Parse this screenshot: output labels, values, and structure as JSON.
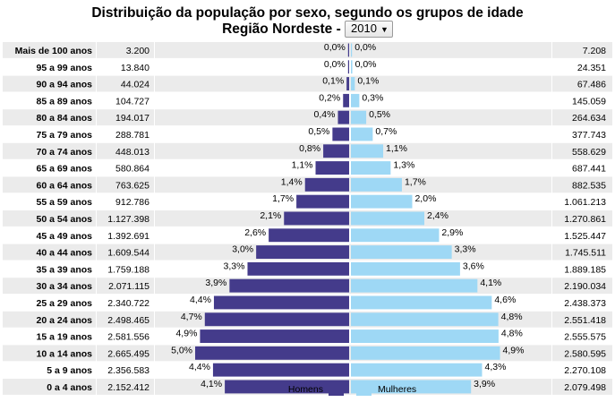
{
  "header": {
    "title": "Distribuição da população por sexo, segundo os grupos de idade",
    "region_prefix": "Região Nordeste -",
    "year_selected": "2010"
  },
  "legend": {
    "men": "Homens",
    "women": "Mulheres"
  },
  "colors": {
    "men": "#443B8B",
    "women": "#9ED8F5",
    "row_even": "#EBEBEB",
    "row_odd": "#FFFFFF"
  },
  "chart_data": {
    "type": "bar",
    "orientation": "horizontal-pyramid",
    "categories": [
      "Mais de 100 anos",
      "95 a 99 anos",
      "90 a 94 anos",
      "85 a 89 anos",
      "80 a 84 anos",
      "75 a 79 anos",
      "70 a 74 anos",
      "65 a 69 anos",
      "60 a 64 anos",
      "55 a 59 anos",
      "50 a 54 anos",
      "45 a 49 anos",
      "40 a 44 anos",
      "35 a 39 anos",
      "30 a 34 anos",
      "25 a 29 anos",
      "20 a 24 anos",
      "15 a 19 anos",
      "10 a 14 anos",
      "5 a 9 anos",
      "0 a 4 anos"
    ],
    "series": [
      {
        "name": "Homens",
        "values": [
          3200,
          13840,
          44024,
          104727,
          194017,
          288781,
          448013,
          580864,
          763625,
          912786,
          1127398,
          1392691,
          1609544,
          1759188,
          2071115,
          2340722,
          2498465,
          2581556,
          2665495,
          2356583,
          2152412
        ],
        "value_labels": [
          "3.200",
          "13.840",
          "44.024",
          "104.727",
          "194.017",
          "288.781",
          "448.013",
          "580.864",
          "763.625",
          "912.786",
          "1.127.398",
          "1.392.691",
          "1.609.544",
          "1.759.188",
          "2.071.115",
          "2.340.722",
          "2.498.465",
          "2.581.556",
          "2.665.495",
          "2.356.583",
          "2.152.412"
        ],
        "percent_labels": [
          "0,0%",
          "0,0%",
          "0,1%",
          "0,2%",
          "0,4%",
          "0,5%",
          "0,8%",
          "1,1%",
          "1,4%",
          "1,7%",
          "2,1%",
          "2,6%",
          "3,0%",
          "3,3%",
          "3,9%",
          "4,4%",
          "4,7%",
          "4,9%",
          "5,0%",
          "4,4%",
          "4,1%"
        ]
      },
      {
        "name": "Mulheres",
        "values": [
          7208,
          24351,
          67486,
          145059,
          264634,
          377743,
          558629,
          687441,
          882535,
          1061213,
          1270861,
          1525447,
          1745511,
          1889185,
          2190034,
          2438373,
          2551418,
          2555575,
          2580595,
          2270108,
          2079498
        ],
        "value_labels": [
          "7.208",
          "24.351",
          "67.486",
          "145.059",
          "264.634",
          "377.743",
          "558.629",
          "687.441",
          "882.535",
          "1.061.213",
          "1.270.861",
          "1.525.447",
          "1.745.511",
          "1.889.185",
          "2.190.034",
          "2.438.373",
          "2.551.418",
          "2.555.575",
          "2.580.595",
          "2.270.108",
          "2.079.498"
        ],
        "percent_labels": [
          "0,0%",
          "0,0%",
          "0,1%",
          "0,3%",
          "0,5%",
          "0,7%",
          "1,1%",
          "1,3%",
          "1,7%",
          "2,0%",
          "2,4%",
          "2,9%",
          "3,3%",
          "3,6%",
          "4,1%",
          "4,6%",
          "4,8%",
          "4,8%",
          "4,9%",
          "4,3%",
          "3,9%"
        ]
      }
    ],
    "grid": false,
    "legend_position": "bottom-center"
  }
}
